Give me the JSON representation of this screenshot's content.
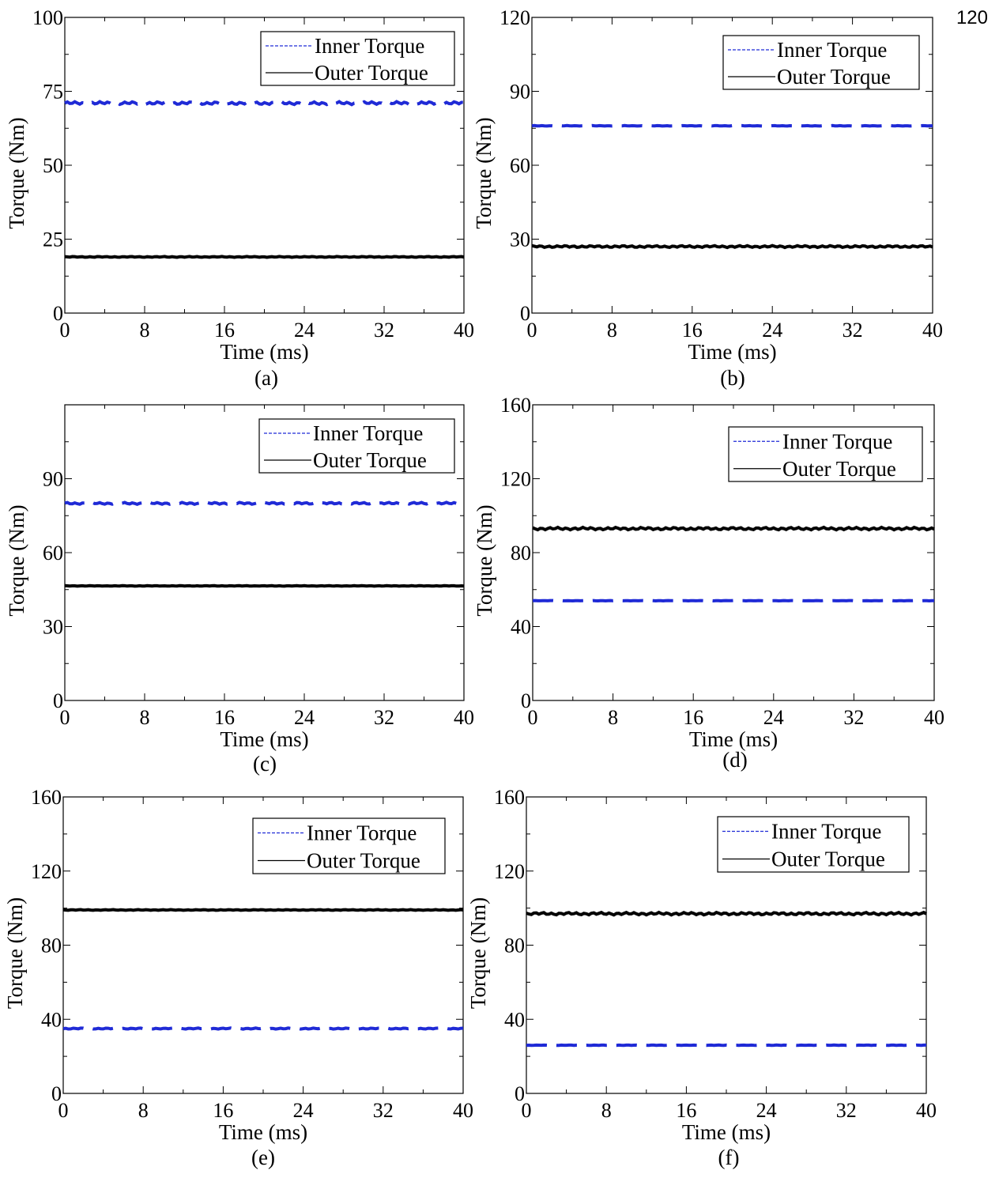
{
  "stray_label": "120",
  "colors": {
    "inner": "#1f2ad6",
    "outer": "#000000"
  },
  "chart_data": [
    {
      "type": "line",
      "caption": "(a)",
      "xlabel": "Time (ms)",
      "ylabel": "Torque (Nm)",
      "xlim": [
        0,
        40
      ],
      "ylim": [
        0,
        100
      ],
      "xticks": [
        0,
        8,
        16,
        24,
        32,
        40
      ],
      "yticks": [
        0,
        25,
        50,
        75,
        100
      ],
      "x": [
        0,
        40
      ],
      "legend": {
        "position": "top-right"
      },
      "series": [
        {
          "name": "Inner Torque",
          "style": "dashed",
          "values": [
            71,
            71
          ],
          "ripple": 0.5
        },
        {
          "name": "Outer Torque",
          "style": "solid",
          "values": [
            19,
            19
          ],
          "ripple": 0.15
        }
      ]
    },
    {
      "type": "line",
      "caption": "(b)",
      "xlabel": "Time (ms)",
      "ylabel": "Torque (Nm)",
      "xlim": [
        0,
        40
      ],
      "ylim": [
        0,
        120
      ],
      "xticks": [
        0,
        8,
        16,
        24,
        32,
        40
      ],
      "yticks": [
        0,
        30,
        60,
        90,
        120
      ],
      "x": [
        0,
        40
      ],
      "legend": {
        "position": "top-right"
      },
      "series": [
        {
          "name": "Inner Torque",
          "style": "dashed",
          "values": [
            76,
            76
          ],
          "ripple": 0.1
        },
        {
          "name": "Outer Torque",
          "style": "solid",
          "values": [
            27,
            27
          ],
          "ripple": 0.4
        }
      ]
    },
    {
      "type": "line",
      "caption": "(c)",
      "xlabel": "Time (ms)",
      "ylabel": "Torque (Nm)",
      "xlim": [
        0,
        40
      ],
      "ylim": [
        0,
        120
      ],
      "xticks": [
        0,
        8,
        16,
        24,
        32,
        40
      ],
      "yticks": [
        0,
        30,
        60,
        90
      ],
      "x": [
        0,
        40
      ],
      "legend": {
        "position": "top-right"
      },
      "series": [
        {
          "name": "Inner Torque",
          "style": "dashed",
          "values": [
            80,
            80
          ],
          "ripple": 0.4
        },
        {
          "name": "Outer Torque",
          "style": "solid",
          "values": [
            46.5,
            46.5
          ],
          "ripple": 0.1
        }
      ]
    },
    {
      "type": "line",
      "caption": "(d)",
      "xlabel": "Time (ms)",
      "ylabel": "Torque (Nm)",
      "xlim": [
        0,
        40
      ],
      "ylim": [
        0,
        160
      ],
      "xticks": [
        0,
        8,
        16,
        24,
        32,
        40
      ],
      "yticks": [
        0,
        40,
        80,
        120,
        160
      ],
      "x": [
        0,
        40
      ],
      "legend": {
        "position": "top-right"
      },
      "series": [
        {
          "name": "Inner Torque",
          "style": "dashed",
          "values": [
            54,
            54
          ],
          "ripple": 0.1
        },
        {
          "name": "Outer Torque",
          "style": "solid",
          "values": [
            93,
            93
          ],
          "ripple": 0.7
        }
      ]
    },
    {
      "type": "line",
      "caption": "(e)",
      "xlabel": "Time (ms)",
      "ylabel": "Torque (Nm)",
      "xlim": [
        0,
        40
      ],
      "ylim": [
        0,
        160
      ],
      "xticks": [
        0,
        8,
        16,
        24,
        32,
        40
      ],
      "yticks": [
        0,
        40,
        80,
        120,
        160
      ],
      "x": [
        0,
        40
      ],
      "legend": {
        "position": "top-right"
      },
      "series": [
        {
          "name": "Inner Torque",
          "style": "dashed",
          "values": [
            35,
            35
          ],
          "ripple": 0.3
        },
        {
          "name": "Outer Torque",
          "style": "solid",
          "values": [
            99,
            99
          ],
          "ripple": 0.2
        }
      ]
    },
    {
      "type": "line",
      "caption": "(f)",
      "xlabel": "Time (ms)",
      "ylabel": "Torque (Nm)",
      "xlim": [
        0,
        40
      ],
      "ylim": [
        0,
        160
      ],
      "xticks": [
        0,
        8,
        16,
        24,
        32,
        40
      ],
      "yticks": [
        0,
        40,
        80,
        120,
        160
      ],
      "x": [
        0,
        40
      ],
      "legend": {
        "position": "top-right"
      },
      "series": [
        {
          "name": "Inner Torque",
          "style": "dashed",
          "values": [
            26,
            26
          ],
          "ripple": 0.1
        },
        {
          "name": "Outer Torque",
          "style": "solid",
          "values": [
            97,
            97
          ],
          "ripple": 0.7
        }
      ]
    }
  ]
}
